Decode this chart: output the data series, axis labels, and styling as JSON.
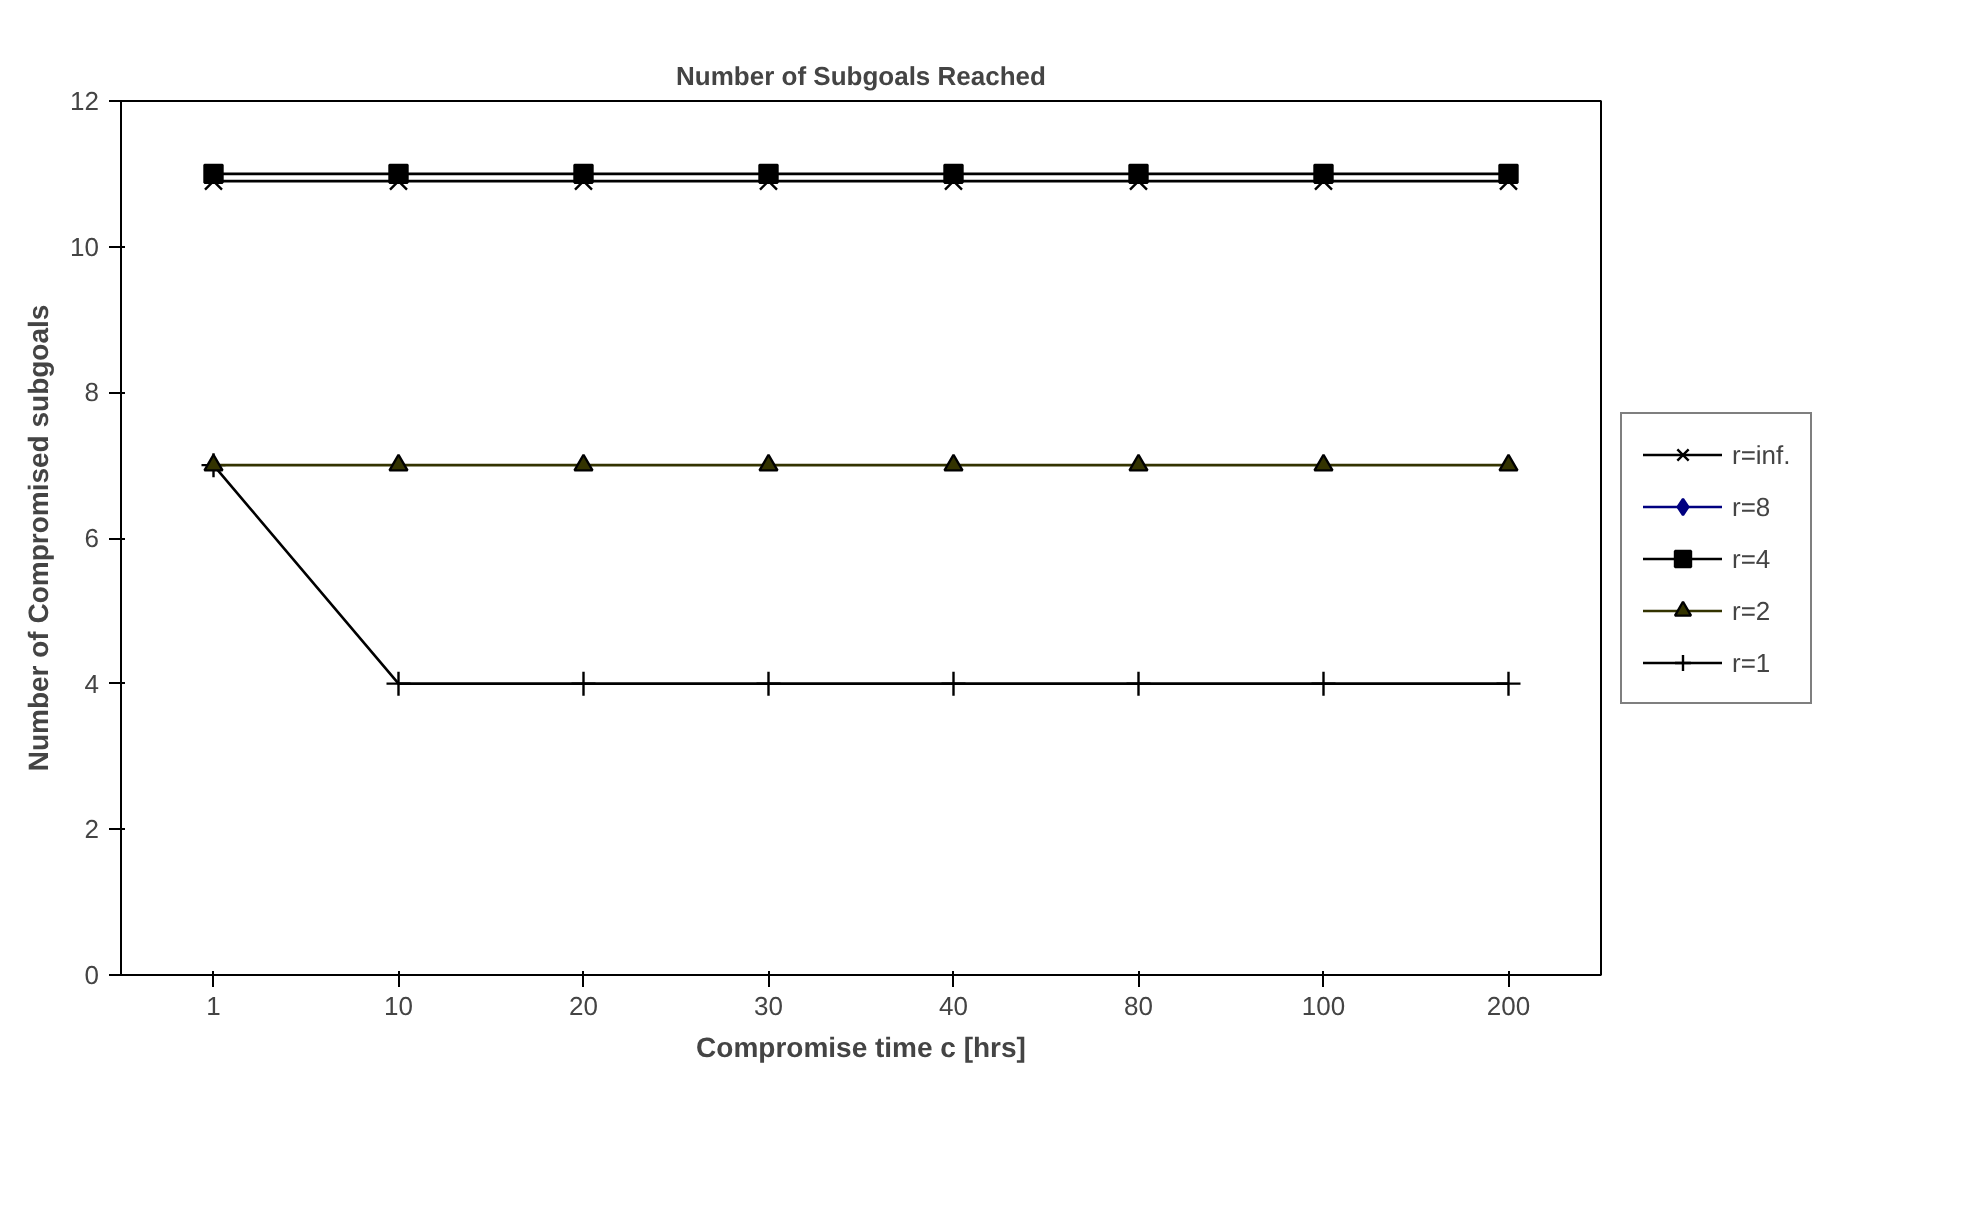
{
  "chart_data": {
    "type": "line",
    "title": "Number of Subgoals Reached",
    "xlabel": "Compromise time c [hrs]",
    "ylabel": "Number of Compromised subgoals",
    "categories": [
      "1",
      "10",
      "20",
      "30",
      "40",
      "80",
      "100",
      "200"
    ],
    "series": [
      {
        "name": "r=inf.",
        "color": "#000000",
        "marker": "x",
        "values": [
          10.9,
          10.9,
          10.9,
          10.9,
          10.9,
          10.9,
          10.9,
          10.9
        ]
      },
      {
        "name": "r=8",
        "color": "#000080",
        "marker": "diamond",
        "values": [
          null,
          null,
          null,
          null,
          null,
          null,
          null,
          null
        ]
      },
      {
        "name": "r=4",
        "color": "#000000",
        "marker": "square",
        "values": [
          11,
          11,
          11,
          11,
          11,
          11,
          11,
          11
        ]
      },
      {
        "name": "r=2",
        "color": "#333300",
        "marker": "triangle",
        "values": [
          7,
          7,
          7,
          7,
          7,
          7,
          7,
          7
        ]
      },
      {
        "name": "r=1",
        "color": "#000000",
        "marker": "cross",
        "values": [
          7,
          4,
          4,
          4,
          4,
          4,
          4,
          4
        ]
      }
    ],
    "ylim": [
      0,
      12
    ],
    "yticks": [
      0,
      2,
      4,
      6,
      8,
      10,
      12
    ],
    "grid": false,
    "legend": "right"
  }
}
